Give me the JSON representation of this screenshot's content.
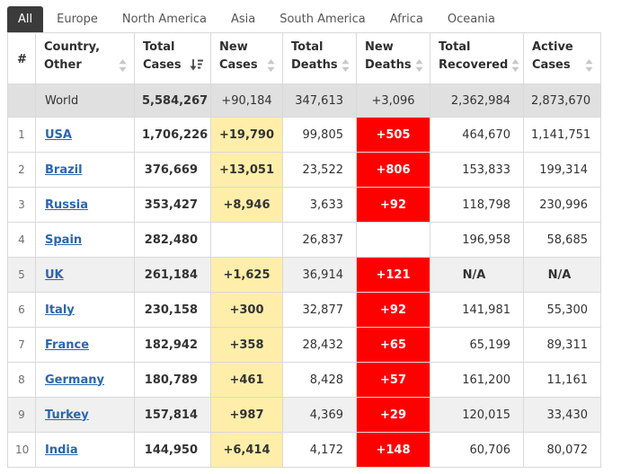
{
  "colors": {
    "tab_active_bg": "#3b3b3b",
    "link": "#2a66b0",
    "new_cases_bg": "#ffeeaa",
    "new_deaths_bg": "#ff0000",
    "world_row_bg": "#e0e0e0",
    "stripe_bg": "#f0f0f0"
  },
  "tabs": [
    {
      "label": "All",
      "active": true
    },
    {
      "label": "Europe",
      "active": false
    },
    {
      "label": "North America",
      "active": false
    },
    {
      "label": "Asia",
      "active": false
    },
    {
      "label": "South America",
      "active": false
    },
    {
      "label": "Africa",
      "active": false
    },
    {
      "label": "Oceania",
      "active": false
    }
  ],
  "table": {
    "columns": [
      {
        "id": "rank",
        "line1": "#",
        "line2": "",
        "sort_icon": ""
      },
      {
        "id": "country",
        "line1": "Country,",
        "line2": "Other",
        "sort_icon": "sort"
      },
      {
        "id": "total_cases",
        "line1": "Total",
        "line2": "Cases",
        "sort_icon": "sort-amount-desc"
      },
      {
        "id": "new_cases",
        "line1": "New",
        "line2": "Cases",
        "sort_icon": "sort"
      },
      {
        "id": "total_deaths",
        "line1": "Total",
        "line2": "Deaths",
        "sort_icon": "sort"
      },
      {
        "id": "new_deaths",
        "line1": "New",
        "line2": "Deaths",
        "sort_icon": "sort"
      },
      {
        "id": "total_recovered",
        "line1": "Total",
        "line2": "Recovered",
        "sort_icon": "sort"
      },
      {
        "id": "active_cases",
        "line1": "Active",
        "line2": "Cases",
        "sort_icon": "sort"
      }
    ],
    "world_row": {
      "rank": "",
      "country": "World",
      "total_cases": "5,584,267",
      "new_cases": "+90,184",
      "total_deaths": "347,613",
      "new_deaths": "+3,096",
      "total_recovered": "2,362,984",
      "active_cases": "2,873,670"
    },
    "rows": [
      {
        "rank": "1",
        "country": "USA",
        "total_cases": "1,706,226",
        "new_cases": "+19,790",
        "total_deaths": "99,805",
        "new_deaths": "+505",
        "total_recovered": "464,670",
        "active_cases": "1,141,751"
      },
      {
        "rank": "2",
        "country": "Brazil",
        "total_cases": "376,669",
        "new_cases": "+13,051",
        "total_deaths": "23,522",
        "new_deaths": "+806",
        "total_recovered": "153,833",
        "active_cases": "199,314"
      },
      {
        "rank": "3",
        "country": "Russia",
        "total_cases": "353,427",
        "new_cases": "+8,946",
        "total_deaths": "3,633",
        "new_deaths": "+92",
        "total_recovered": "118,798",
        "active_cases": "230,996"
      },
      {
        "rank": "4",
        "country": "Spain",
        "total_cases": "282,480",
        "new_cases": "",
        "total_deaths": "26,837",
        "new_deaths": "",
        "total_recovered": "196,958",
        "active_cases": "58,685"
      },
      {
        "rank": "5",
        "country": "UK",
        "total_cases": "261,184",
        "new_cases": "+1,625",
        "total_deaths": "36,914",
        "new_deaths": "+121",
        "total_recovered": "N/A",
        "active_cases": "N/A"
      },
      {
        "rank": "6",
        "country": "Italy",
        "total_cases": "230,158",
        "new_cases": "+300",
        "total_deaths": "32,877",
        "new_deaths": "+92",
        "total_recovered": "141,981",
        "active_cases": "55,300"
      },
      {
        "rank": "7",
        "country": "France",
        "total_cases": "182,942",
        "new_cases": "+358",
        "total_deaths": "28,432",
        "new_deaths": "+65",
        "total_recovered": "65,199",
        "active_cases": "89,311"
      },
      {
        "rank": "8",
        "country": "Germany",
        "total_cases": "180,789",
        "new_cases": "+461",
        "total_deaths": "8,428",
        "new_deaths": "+57",
        "total_recovered": "161,200",
        "active_cases": "11,161"
      },
      {
        "rank": "9",
        "country": "Turkey",
        "total_cases": "157,814",
        "new_cases": "+987",
        "total_deaths": "4,369",
        "new_deaths": "+29",
        "total_recovered": "120,015",
        "active_cases": "33,430"
      },
      {
        "rank": "10",
        "country": "India",
        "total_cases": "144,950",
        "new_cases": "+6,414",
        "total_deaths": "4,172",
        "new_deaths": "+148",
        "total_recovered": "60,706",
        "active_cases": "80,072"
      }
    ]
  }
}
